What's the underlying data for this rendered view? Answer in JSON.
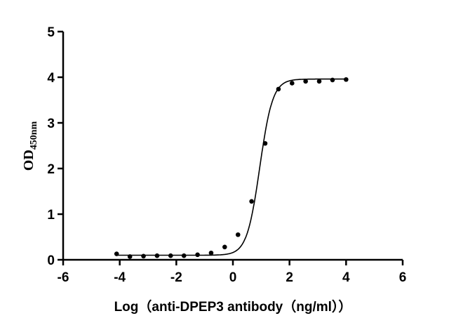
{
  "chart_data": {
    "type": "scatter",
    "title": "",
    "xlabel": "Log（anti-DPEP3 antibody（ng/ml））",
    "ylabel_main": "OD",
    "ylabel_sub": "450nm",
    "xlim": [
      -6,
      6
    ],
    "ylim": [
      0,
      5
    ],
    "xticks": [
      -6,
      -4,
      -2,
      0,
      2,
      4,
      6
    ],
    "yticks": [
      0,
      1,
      2,
      3,
      4,
      5
    ],
    "grid": false,
    "has_fit_curve": true,
    "point_color": "#000000",
    "x": [
      -4.11,
      -3.64,
      -3.16,
      -2.68,
      -2.2,
      -1.73,
      -1.25,
      -0.77,
      -0.29,
      0.18,
      0.66,
      1.14,
      1.61,
      2.09,
      2.57,
      3.05,
      3.52,
      4.0
    ],
    "y": [
      0.13,
      0.07,
      0.08,
      0.09,
      0.09,
      0.09,
      0.11,
      0.15,
      0.28,
      0.55,
      1.28,
      2.55,
      3.74,
      3.87,
      3.91,
      3.91,
      3.94,
      3.95
    ]
  }
}
